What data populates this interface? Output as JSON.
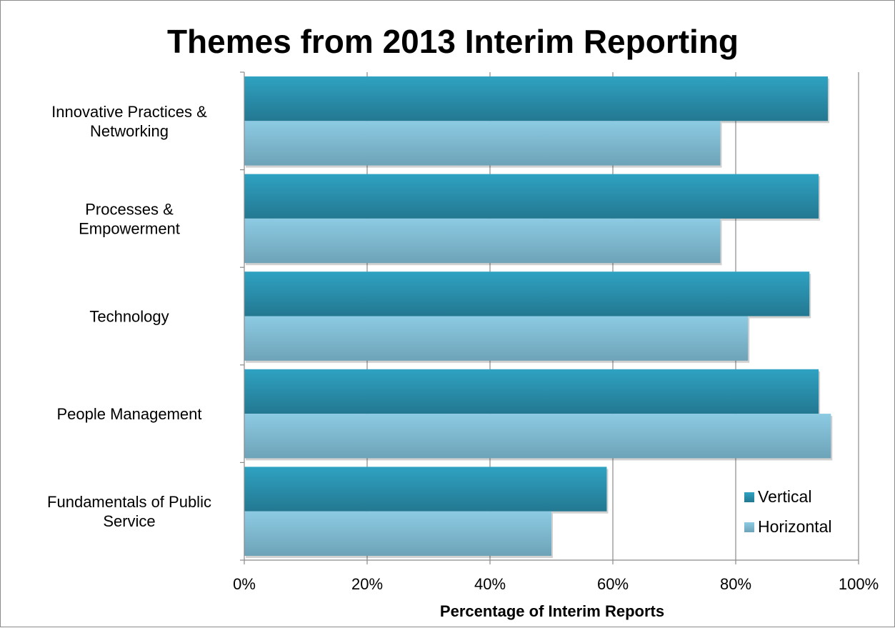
{
  "chart_data": {
    "type": "bar",
    "orientation": "horizontal",
    "title": "Themes from 2013 Interim Reporting",
    "xlabel": "Percentage of Interim Reports",
    "ylabel": "",
    "xlim": [
      0,
      100
    ],
    "x_ticks": [
      "0%",
      "20%",
      "40%",
      "60%",
      "80%",
      "100%"
    ],
    "x_tick_values": [
      0,
      20,
      40,
      60,
      80,
      100
    ],
    "categories": [
      [
        "Innovative Practices &",
        "Networking"
      ],
      [
        "Processes &",
        "Empowerment"
      ],
      [
        "Technology"
      ],
      [
        "People Management"
      ],
      [
        "Fundamentals of Public",
        "Service"
      ]
    ],
    "series": [
      {
        "name": "Vertical",
        "color": "#2a8aa6",
        "values": [
          95,
          93.5,
          92,
          93.5,
          59
        ]
      },
      {
        "name": "Horizontal",
        "color": "#7fbdd6",
        "values": [
          77.5,
          77.5,
          82,
          95.5,
          50
        ]
      }
    ],
    "grid": "vertical",
    "legend_position": "bottom-right"
  }
}
